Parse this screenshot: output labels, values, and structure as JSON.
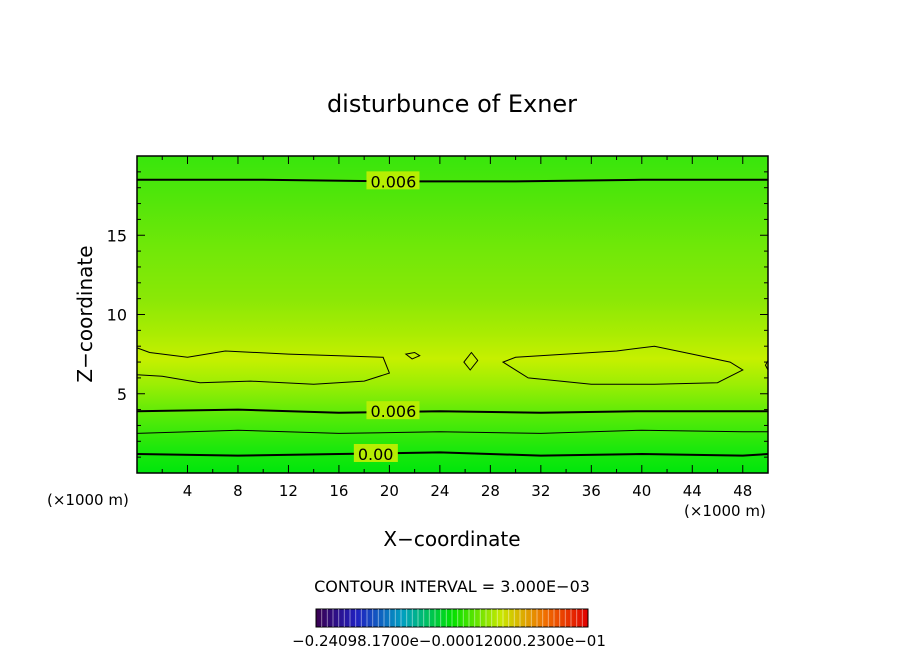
{
  "chart_data": {
    "type": "contour",
    "title": "disturbunce of Exner",
    "xlabel": "X−coordinate",
    "ylabel": "Z−coordinate",
    "x_unit_left": "(×1000 m)",
    "x_unit_right": "(×1000 m)",
    "xlim": [
      0,
      50
    ],
    "ylim": [
      0,
      20
    ],
    "x_ticks": [
      "4",
      "8",
      "12",
      "16",
      "20",
      "24",
      "28",
      "32",
      "36",
      "40",
      "44",
      "48"
    ],
    "x_tick_values": [
      4,
      8,
      12,
      16,
      20,
      24,
      28,
      32,
      36,
      40,
      44,
      48
    ],
    "y_ticks": [
      "5",
      "10",
      "15"
    ],
    "y_tick_values": [
      5,
      10,
      15
    ],
    "contour_interval_text": "CONTOUR INTERVAL = 3.000E−03",
    "contour_labels": [
      {
        "text": "0.006",
        "x": 18.5,
        "z": 18.4
      },
      {
        "text": "0.006",
        "x": 18.5,
        "z": 3.9
      },
      {
        "text": "0.00",
        "x": 17.5,
        "z": 1.2
      }
    ],
    "contour_lines": [
      {
        "level": "0.006",
        "x": [
          0,
          10,
          20,
          30,
          40,
          50
        ],
        "z": [
          18.5,
          18.5,
          18.4,
          18.4,
          18.5,
          18.5
        ]
      },
      {
        "level": "0.006",
        "x": [
          0,
          8,
          16,
          24,
          32,
          40,
          48,
          50
        ],
        "z": [
          3.9,
          4.0,
          3.8,
          3.9,
          3.8,
          3.9,
          3.9,
          3.9
        ]
      },
      {
        "level": "thin",
        "x": [
          0,
          8,
          16,
          24,
          32,
          40,
          48,
          50
        ],
        "z": [
          2.5,
          2.7,
          2.5,
          2.6,
          2.5,
          2.7,
          2.6,
          2.6
        ]
      },
      {
        "level": "0.00",
        "x": [
          0,
          8,
          16,
          24,
          32,
          40,
          48,
          50
        ],
        "z": [
          1.2,
          1.1,
          1.2,
          1.3,
          1.1,
          1.2,
          1.1,
          1.2
        ]
      }
    ],
    "closed_contours": [
      {
        "x": [
          0,
          1,
          4,
          7,
          12,
          16,
          19.5,
          20,
          18,
          14,
          9,
          5,
          2,
          0
        ],
        "z": [
          7.9,
          7.6,
          7.3,
          7.7,
          7.5,
          7.4,
          7.3,
          6.3,
          5.8,
          5.6,
          5.8,
          5.7,
          6.1,
          6.2
        ]
      },
      {
        "x": [
          29,
          30,
          34,
          38,
          41,
          44,
          47,
          48,
          46,
          41,
          36,
          31,
          29
        ],
        "z": [
          7.0,
          7.3,
          7.5,
          7.7,
          8.0,
          7.5,
          7.0,
          6.5,
          5.7,
          5.6,
          5.6,
          6.0,
          7.0
        ]
      },
      {
        "x": [
          25.9,
          26.5,
          27.0,
          26.4,
          25.9
        ],
        "z": [
          7.0,
          7.6,
          7.1,
          6.5,
          7.0
        ]
      },
      {
        "x": [
          21.3,
          22.0,
          22.4,
          21.8,
          21.3
        ],
        "z": [
          7.5,
          7.6,
          7.4,
          7.2,
          7.5
        ]
      },
      {
        "x": [
          49.8,
          50,
          50,
          49.8
        ],
        "z": [
          6.8,
          7.1,
          6.5,
          6.8
        ]
      }
    ],
    "colorbar_labels": "−0.24098.1700e−0.00012000.2300e−01",
    "colors": {
      "field_bottom": "#00e60c",
      "field_mid": "#c6f000",
      "field_top": "#3de80b",
      "line": "#000000"
    }
  }
}
